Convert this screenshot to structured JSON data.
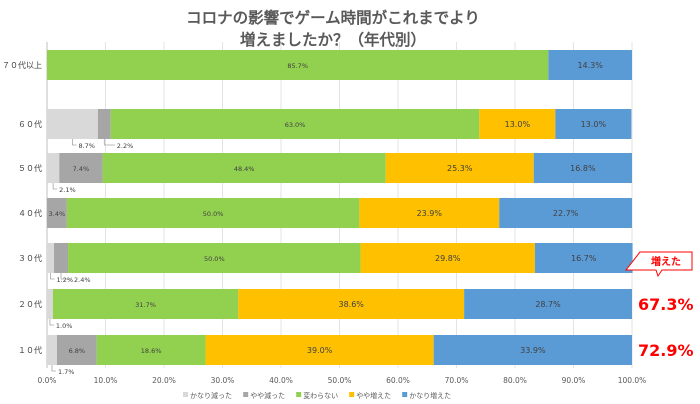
{
  "chart_data": {
    "type": "bar",
    "orientation": "horizontal",
    "stacked": true,
    "title_line1": "コロナの影響でゲーム時間がこれまでより",
    "title_line2": "増えましたか？（年代別）",
    "xlim": [
      0,
      100
    ],
    "x_ticks": [
      "0.0%",
      "10.0%",
      "20.0%",
      "30.0%",
      "40.0%",
      "50.0%",
      "60.0%",
      "70.0%",
      "80.0%",
      "90.0%",
      "100.0%"
    ],
    "categories": [
      "７０代以上",
      "６０代",
      "５０代",
      "４０代",
      "３０代",
      "２０代",
      "１０代"
    ],
    "legend_position": "bottom",
    "series": [
      {
        "name": "かなり減った",
        "color": "#d9d9d9",
        "values": [
          0,
          8.7,
          2.1,
          0,
          1.2,
          1.0,
          1.7
        ]
      },
      {
        "name": "やや減った",
        "color": "#a6a6a6",
        "values": [
          0,
          2.2,
          7.4,
          3.4,
          2.4,
          0,
          6.8
        ]
      },
      {
        "name": "変わらない",
        "color": "#92d050",
        "values": [
          85.7,
          63.0,
          48.4,
          50.0,
          50.0,
          31.7,
          18.6
        ]
      },
      {
        "name": "やや増えた",
        "color": "#ffc000",
        "values": [
          0,
          13.0,
          25.3,
          23.9,
          29.8,
          38.6,
          39.0
        ]
      },
      {
        "name": "かなり増えた",
        "color": "#5b9bd5",
        "values": [
          14.3,
          13.0,
          16.8,
          22.7,
          16.7,
          28.7,
          33.9
        ]
      }
    ],
    "labels": [
      {
        "row": 0,
        "series": 2,
        "text": "85.7%",
        "pos": "inside"
      },
      {
        "row": 0,
        "series": 4,
        "text": "14.3%",
        "pos": "inside"
      },
      {
        "row": 1,
        "series": 0,
        "text": "8.7%",
        "pos": "below"
      },
      {
        "row": 1,
        "series": 1,
        "text": "2.2%",
        "pos": "below"
      },
      {
        "row": 1,
        "series": 2,
        "text": "63.0%",
        "pos": "inside"
      },
      {
        "row": 1,
        "series": 3,
        "text": "13.0%",
        "pos": "inside"
      },
      {
        "row": 1,
        "series": 4,
        "text": "13.0%",
        "pos": "inside"
      },
      {
        "row": 2,
        "series": 0,
        "text": "2.1%",
        "pos": "below"
      },
      {
        "row": 2,
        "series": 1,
        "text": "7.4%",
        "pos": "inside"
      },
      {
        "row": 2,
        "series": 2,
        "text": "48.4%",
        "pos": "inside"
      },
      {
        "row": 2,
        "series": 3,
        "text": "25.3%",
        "pos": "inside"
      },
      {
        "row": 2,
        "series": 4,
        "text": "16.8%",
        "pos": "inside"
      },
      {
        "row": 3,
        "series": 1,
        "text": "3.4%",
        "pos": "inside"
      },
      {
        "row": 3,
        "series": 2,
        "text": "50.0%",
        "pos": "inside"
      },
      {
        "row": 3,
        "series": 3,
        "text": "23.9%",
        "pos": "inside"
      },
      {
        "row": 3,
        "series": 4,
        "text": "22.7%",
        "pos": "inside"
      },
      {
        "row": 4,
        "series": 0,
        "text": "1.2%",
        "pos": "below"
      },
      {
        "row": 4,
        "series": 1,
        "text": "2.4%",
        "pos": "below"
      },
      {
        "row": 4,
        "series": 2,
        "text": "50.0%",
        "pos": "inside"
      },
      {
        "row": 4,
        "series": 3,
        "text": "29.8%",
        "pos": "inside"
      },
      {
        "row": 4,
        "series": 4,
        "text": "16.7%",
        "pos": "inside"
      },
      {
        "row": 5,
        "series": 0,
        "text": "1.0%",
        "pos": "below"
      },
      {
        "row": 5,
        "series": 2,
        "text": "31.7%",
        "pos": "inside"
      },
      {
        "row": 5,
        "series": 3,
        "text": "38.6%",
        "pos": "inside"
      },
      {
        "row": 5,
        "series": 4,
        "text": "28.7%",
        "pos": "inside"
      },
      {
        "row": 6,
        "series": 0,
        "text": "1.7%",
        "pos": "below"
      },
      {
        "row": 6,
        "series": 1,
        "text": "6.8%",
        "pos": "inside"
      },
      {
        "row": 6,
        "series": 2,
        "text": "18.6%",
        "pos": "inside"
      },
      {
        "row": 6,
        "series": 3,
        "text": "39.0%",
        "pos": "inside"
      },
      {
        "row": 6,
        "series": 4,
        "text": "33.9%",
        "pos": "inside"
      }
    ],
    "callout": {
      "text": "増えた",
      "color": "#ff0000"
    },
    "highlights": [
      {
        "row": 5,
        "text": "67.3%",
        "color": "#ff0000"
      },
      {
        "row": 6,
        "text": "72.9%",
        "color": "#ff0000"
      }
    ],
    "grid": true
  }
}
